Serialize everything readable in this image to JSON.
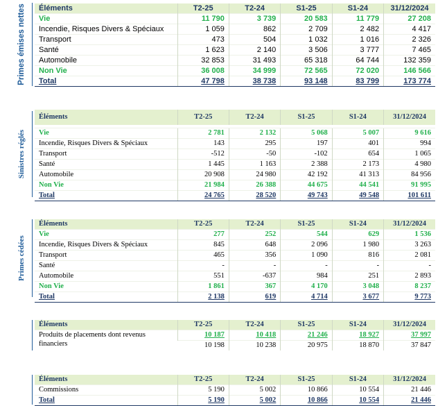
{
  "headers": [
    "Éléments",
    "T2-25",
    "T2-24",
    "S1-25",
    "S1-24",
    "31/12/2024"
  ],
  "sections": [
    {
      "label": "Primes émises nettes",
      "rows": [
        {
          "label": "Vie",
          "values": [
            "11 790",
            "3 739",
            "20 583",
            "11 779",
            "27 208"
          ],
          "style": "green"
        },
        {
          "label": "Incendie, Risques Divers & Spéciaux",
          "values": [
            "1 059",
            "862",
            "2 709",
            "2 482",
            "4 417"
          ],
          "style": "normal"
        },
        {
          "label": "Transport",
          "values": [
            "473",
            "504",
            "1 032",
            "1 016",
            "2 326"
          ],
          "style": "normal"
        },
        {
          "label": "Santé",
          "values": [
            "1 623",
            "2 140",
            "3 506",
            "3 777",
            "7 465"
          ],
          "style": "normal"
        },
        {
          "label": "Automobile",
          "values": [
            "32 853",
            "31 493",
            "65 318",
            "64 744",
            "132 359"
          ],
          "style": "normal"
        },
        {
          "label": "Non Vie",
          "values": [
            "36 008",
            "34 999",
            "72 565",
            "72 020",
            "146 566"
          ],
          "style": "green"
        },
        {
          "label": "Total",
          "values": [
            "47 798",
            "38 738",
            "93 148",
            "83 799",
            "173 774"
          ],
          "style": "total"
        }
      ]
    },
    {
      "label": "Sinistres réglés",
      "rows": [
        {
          "label": "Vie",
          "values": [
            "2 781",
            "2 132",
            "5 068",
            "5 007",
            "9 616"
          ],
          "style": "green"
        },
        {
          "label": "Incendie, Risques Divers & Spéciaux",
          "values": [
            "143",
            "295",
            "197",
            "401",
            "994"
          ],
          "style": "normal"
        },
        {
          "label": "Transport",
          "values": [
            "-512",
            "-50",
            "-102",
            "654",
            "1 065"
          ],
          "style": "normal"
        },
        {
          "label": "Santé",
          "values": [
            "1 445",
            "1 163",
            "2 388",
            "2 173",
            "4 980"
          ],
          "style": "normal"
        },
        {
          "label": "Automobile",
          "values": [
            "20 908",
            "24 980",
            "42 192",
            "41 313",
            "84 956"
          ],
          "style": "normal"
        },
        {
          "label": "Non Vie",
          "values": [
            "21 984",
            "26 388",
            "44 675",
            "44 541",
            "91 995"
          ],
          "style": "green"
        },
        {
          "label": "Total",
          "values": [
            "24 765",
            "28 520",
            "49 743",
            "49 548",
            "101 611"
          ],
          "style": "total"
        }
      ]
    },
    {
      "label": "Primes cédées",
      "rows": [
        {
          "label": "Vie",
          "values": [
            "277",
            "252",
            "544",
            "629",
            "1 536"
          ],
          "style": "green"
        },
        {
          "label": "Incendie, Risques Divers & Spéciaux",
          "values": [
            "845",
            "648",
            "2 096",
            "1 980",
            "3 263"
          ],
          "style": "normal"
        },
        {
          "label": "Transport",
          "values": [
            "465",
            "356",
            "1 090",
            "816",
            "2 081"
          ],
          "style": "normal"
        },
        {
          "label": "Santé",
          "values": [
            "-",
            "-",
            "-",
            "-",
            "-"
          ],
          "style": "normal"
        },
        {
          "label": "Automobile",
          "values": [
            "551",
            "-637",
            "984",
            "251",
            "2 893"
          ],
          "style": "normal"
        },
        {
          "label": "Non Vie",
          "values": [
            "1 861",
            "367",
            "4 170",
            "3 048",
            "8 237"
          ],
          "style": "green"
        },
        {
          "label": "Total",
          "values": [
            "2 138",
            "619",
            "4 714",
            "3 677",
            "9 773"
          ],
          "style": "total"
        }
      ]
    },
    {
      "label": "",
      "rows": [
        {
          "label": "Produits de placements dont revenus financiers",
          "values": [
            "10 187",
            "10 418",
            "21 246",
            "18 927",
            "37 997"
          ],
          "values2": [
            "10 198",
            "10 238",
            "20 975",
            "18 870",
            "37 847"
          ],
          "style": "placements"
        }
      ]
    },
    {
      "label": "",
      "rows": [
        {
          "label": "Commissions",
          "values": [
            "5 190",
            "5 002",
            "10 866",
            "10 554",
            "21 446"
          ],
          "style": "normal"
        },
        {
          "label": "Total",
          "values": [
            "5 190",
            "5 002",
            "10 866",
            "10 554",
            "21 446"
          ],
          "style": "total"
        }
      ]
    }
  ]
}
